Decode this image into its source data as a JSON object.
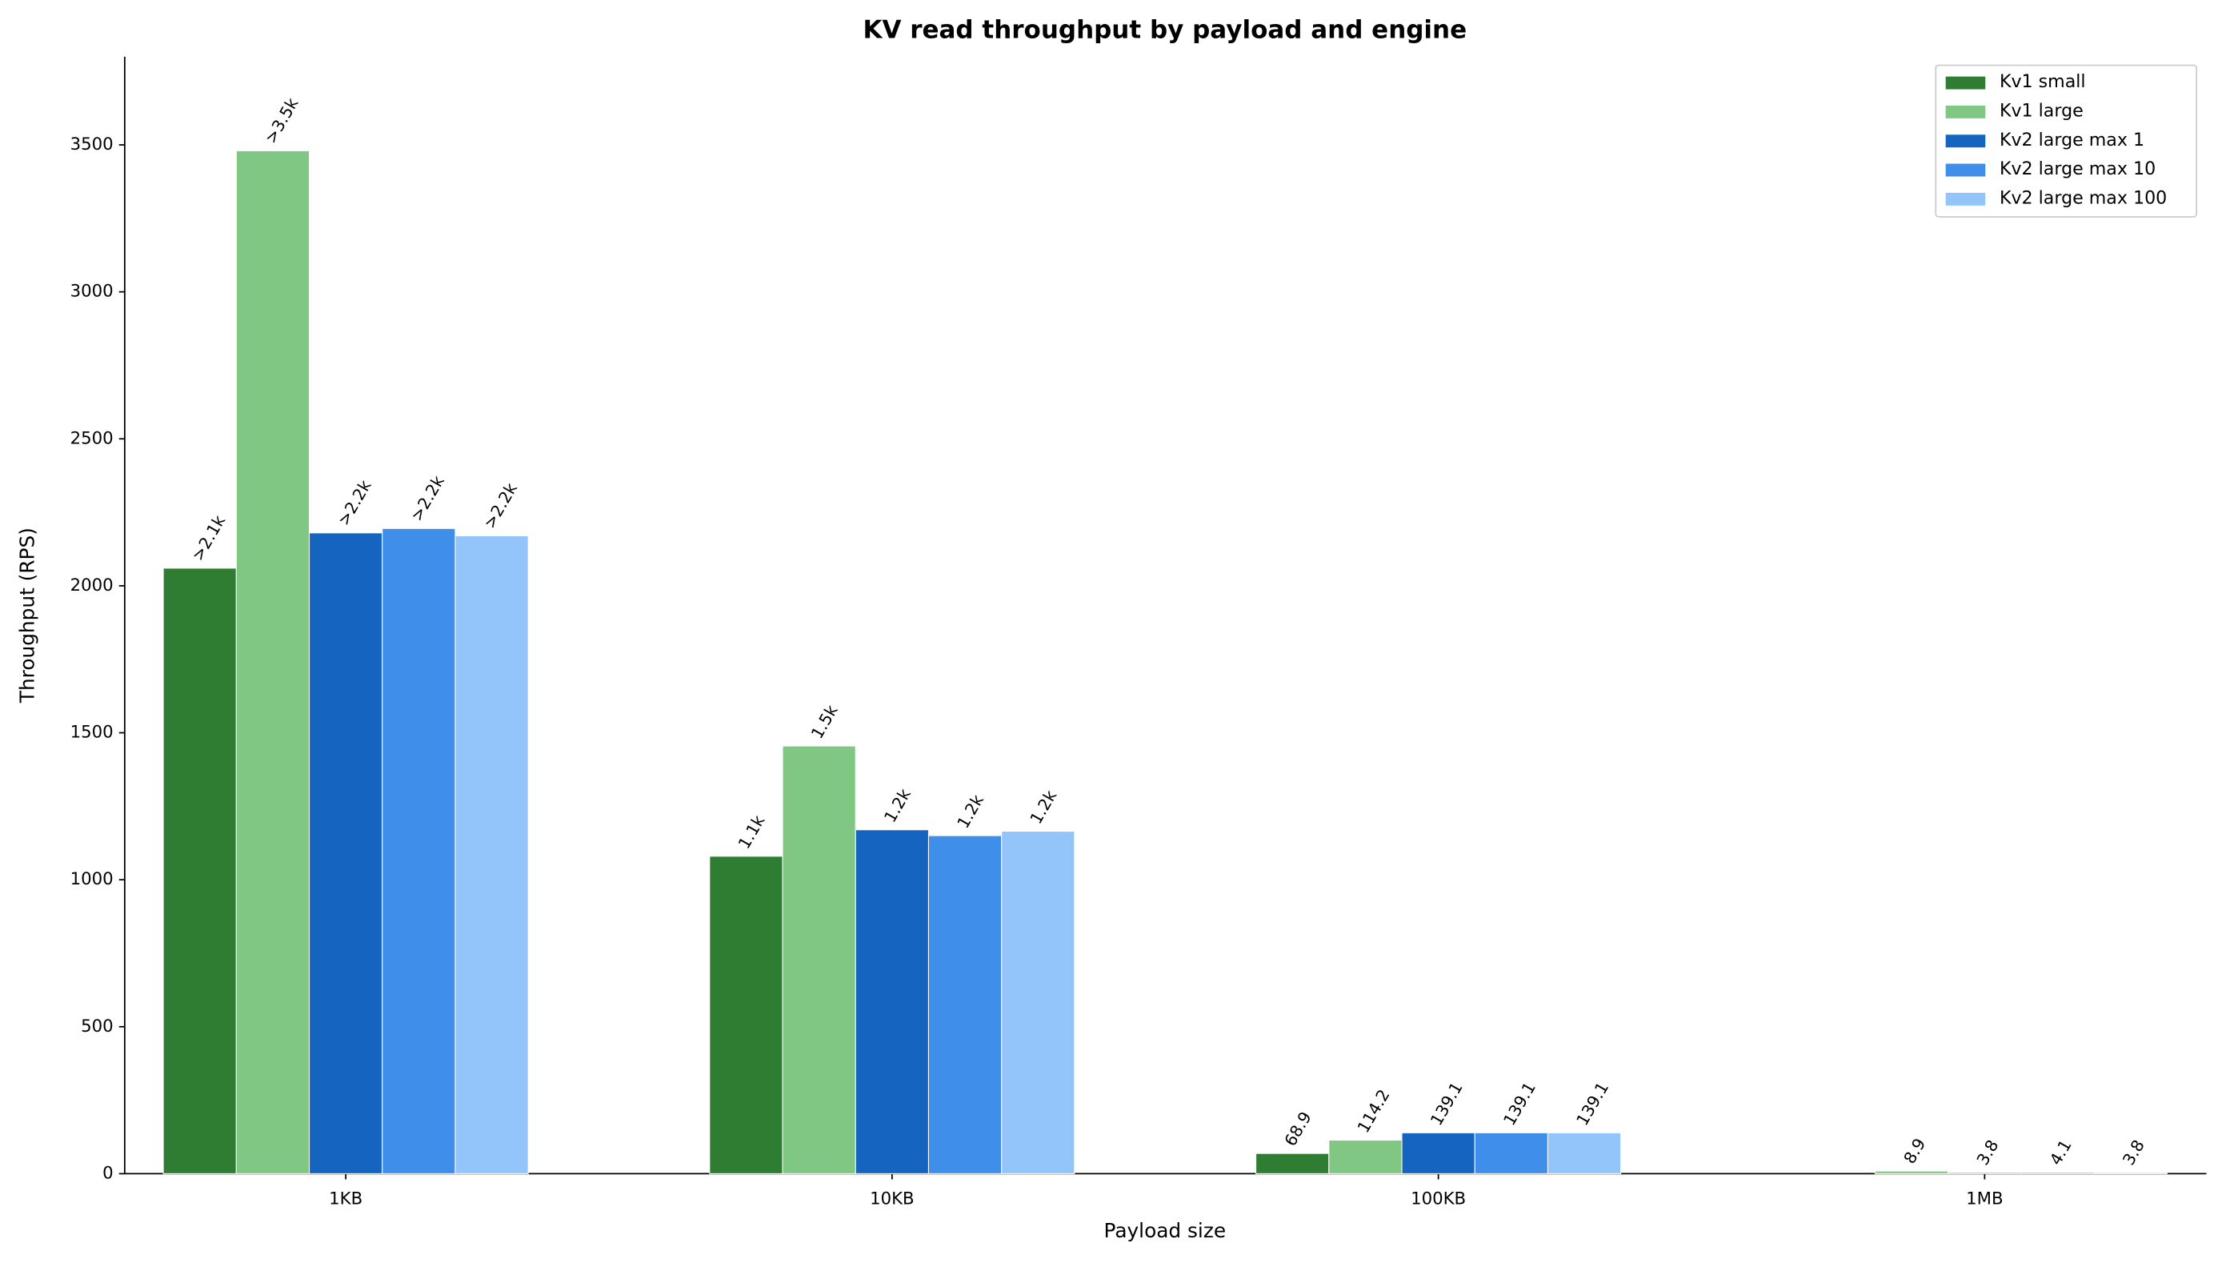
{
  "chart_data": {
    "type": "bar",
    "title": "KV read throughput by payload and engine",
    "x_label": "Payload size",
    "y_label": "Throughput (RPS)",
    "categories": [
      "1KB",
      "10KB",
      "100KB",
      "1MB"
    ],
    "series": [
      {
        "name": "Kv1 small",
        "color": "#2e7d32",
        "values": [
          2060,
          1080,
          68.9,
          null
        ],
        "value_labels": [
          ">2.1k",
          "1.1k",
          "68.9",
          null
        ]
      },
      {
        "name": "Kv1 large",
        "color": "#81c784",
        "values": [
          3480,
          1455,
          114.2,
          8.9
        ],
        "value_labels": [
          ">3.5k",
          "1.5k",
          "114.2",
          "8.9"
        ]
      },
      {
        "name": "Kv2 large max 1",
        "color": "#1565c0",
        "values": [
          2180,
          1170,
          139.1,
          3.8
        ],
        "value_labels": [
          ">2.2k",
          "1.2k",
          "139.1",
          "3.8"
        ]
      },
      {
        "name": "Kv2 large max 10",
        "color": "#3f8eea",
        "values": [
          2195,
          1150,
          139.1,
          4.1
        ],
        "value_labels": [
          ">2.2k",
          "1.2k",
          "139.1",
          "4.1"
        ]
      },
      {
        "name": "Kv2 large max 100",
        "color": "#93c5fb",
        "values": [
          2170,
          1165,
          139.1,
          3.8
        ],
        "value_labels": [
          ">2.2k",
          "1.2k",
          "139.1",
          "3.8"
        ]
      }
    ],
    "ylim": [
      0,
      3800
    ],
    "yticks": [
      0,
      500,
      1000,
      1500,
      2000,
      2500,
      3000,
      3500
    ],
    "legend": "upper right"
  }
}
